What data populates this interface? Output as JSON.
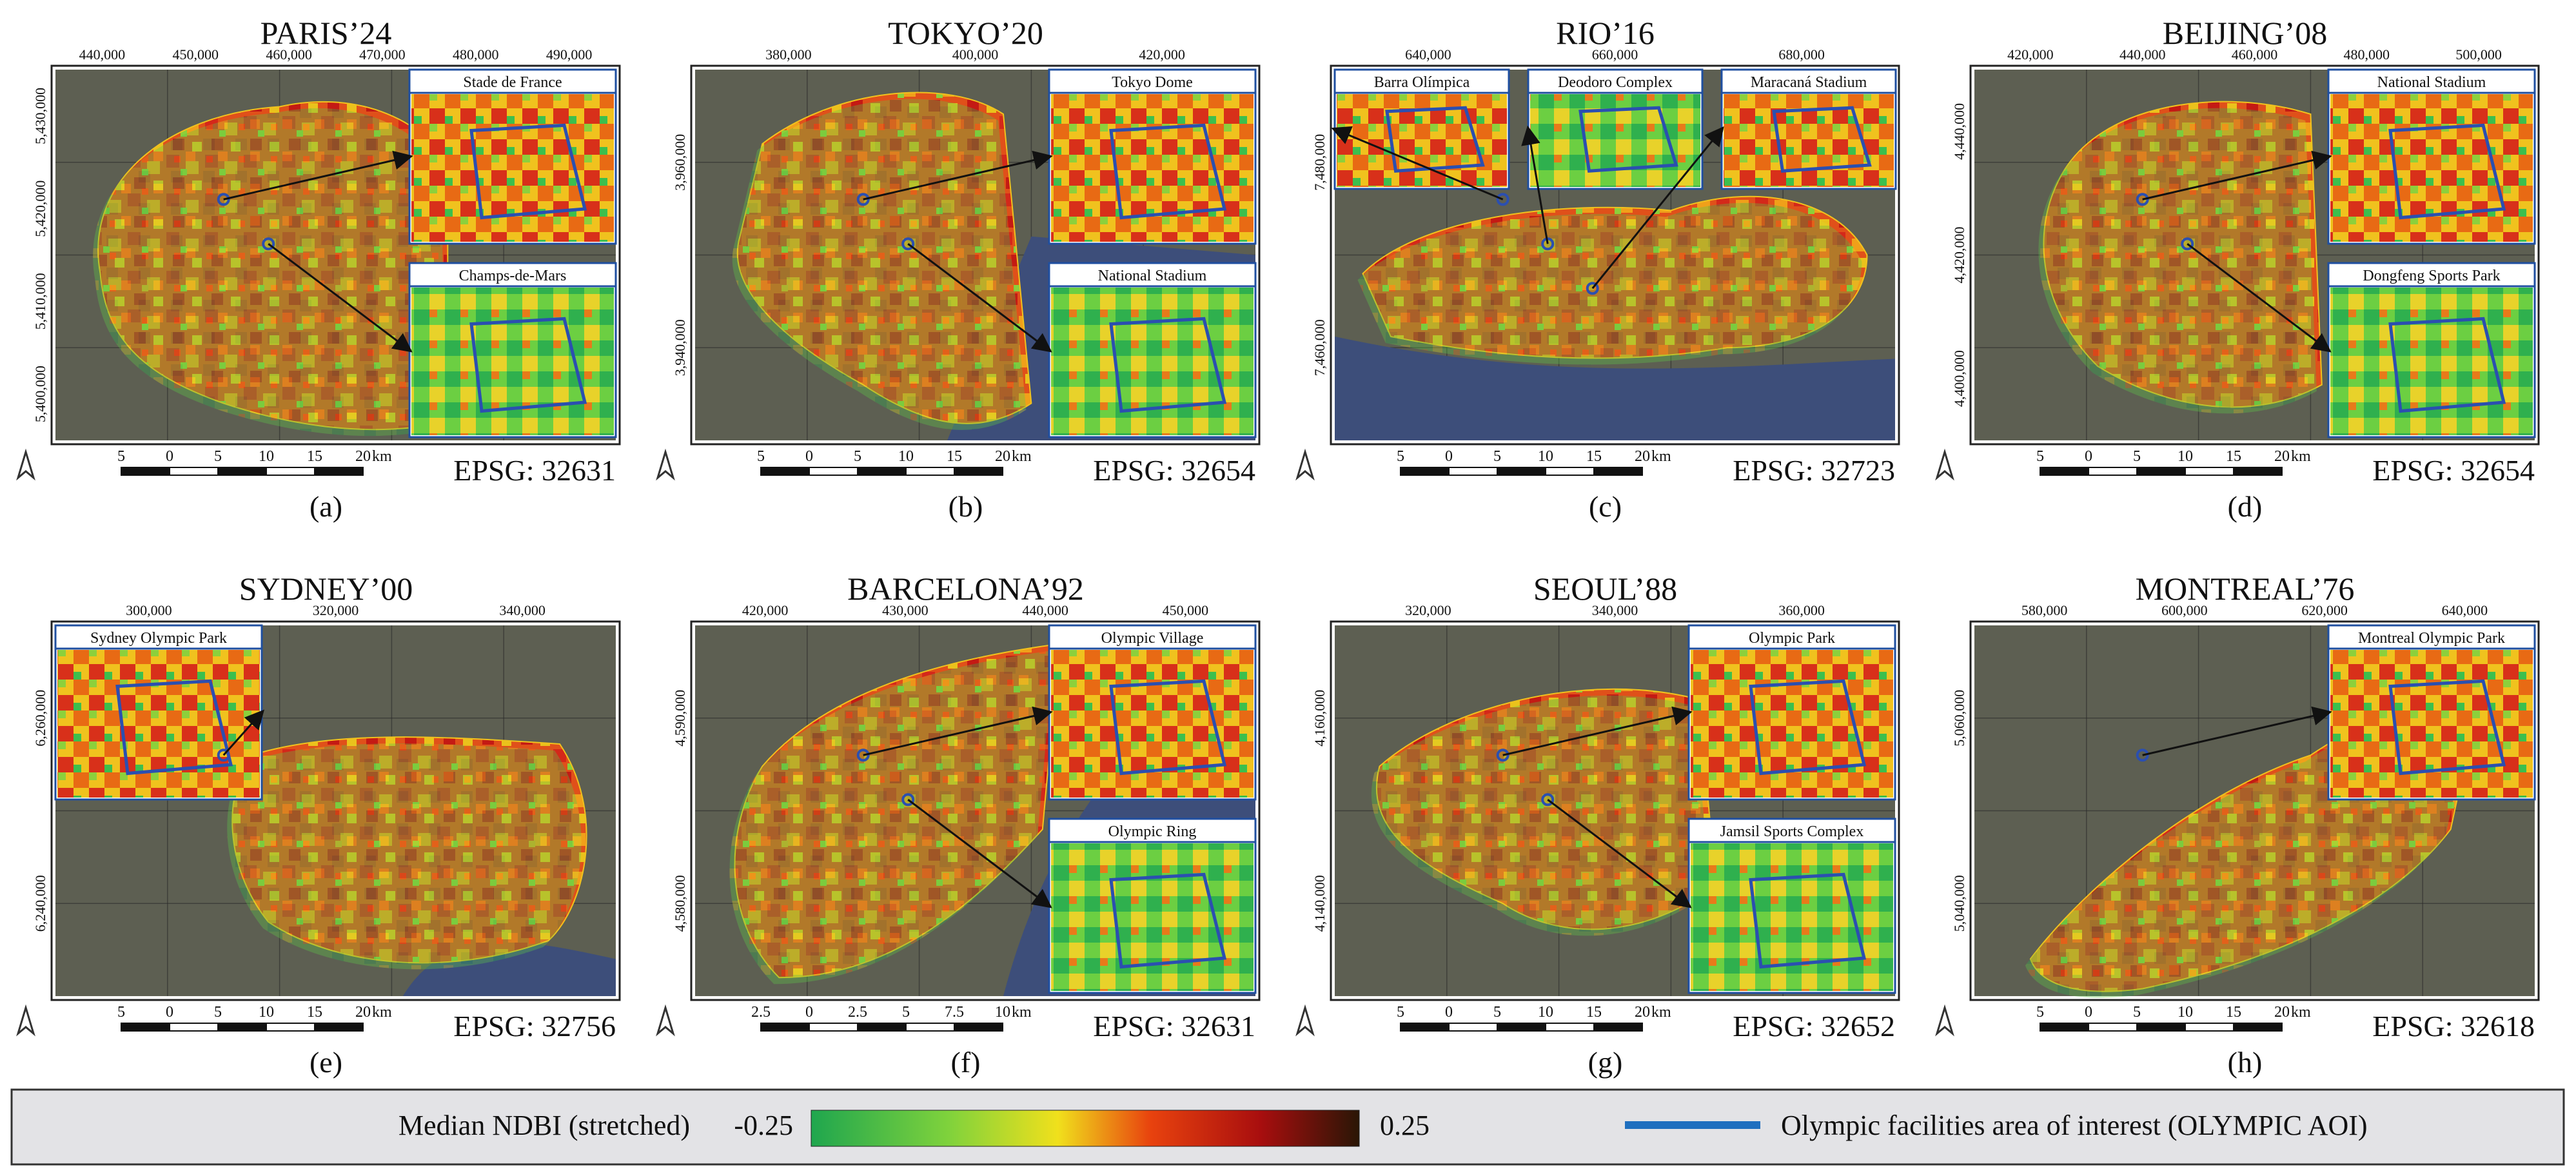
{
  "figure": {
    "panels": [
      {
        "title": "PARIS’24",
        "caption": "(a)",
        "epsg": "EPSG: 32631",
        "x_ticks": [
          "440,000",
          "450,000",
          "460,000",
          "470,000",
          "480,000",
          "490,000"
        ],
        "y_ticks": [
          "5,430,000",
          "5,420,000",
          "5,410,000",
          "5,400,000"
        ],
        "scale": {
          "labels": [
            "5",
            "0",
            "5",
            "10",
            "15",
            "20"
          ],
          "unit": "km"
        },
        "insets": [
          "Stade de France",
          "Champs-de-Mars"
        ]
      },
      {
        "title": "TOKYO’20",
        "caption": "(b)",
        "epsg": "EPSG: 32654",
        "x_ticks": [
          "380,000",
          "400,000",
          "420,000"
        ],
        "y_ticks": [
          "3,960,000",
          "3,940,000"
        ],
        "scale": {
          "labels": [
            "5",
            "0",
            "5",
            "10",
            "15",
            "20"
          ],
          "unit": "km"
        },
        "insets": [
          "Tokyo Dome",
          "National Stadium"
        ]
      },
      {
        "title": "RIO’16",
        "caption": "(c)",
        "epsg": "EPSG: 32723",
        "x_ticks": [
          "640,000",
          "660,000",
          "680,000"
        ],
        "y_ticks": [
          "7,480,000",
          "7,460,000"
        ],
        "scale": {
          "labels": [
            "5",
            "0",
            "5",
            "10",
            "15",
            "20"
          ],
          "unit": "km"
        },
        "insets": [
          "Barra Olímpica",
          "Deodoro Complex",
          "Maracaná Stadium"
        ]
      },
      {
        "title": "BEIJING’08",
        "caption": "(d)",
        "epsg": "EPSG: 32654",
        "x_ticks": [
          "420,000",
          "440,000",
          "460,000",
          "480,000",
          "500,000"
        ],
        "y_ticks": [
          "4,440,000",
          "4,420,000",
          "4,400,000"
        ],
        "scale": {
          "labels": [
            "5",
            "0",
            "5",
            "10",
            "15",
            "20"
          ],
          "unit": "km"
        },
        "insets": [
          "National Stadium",
          "Dongfeng Sports Park"
        ]
      },
      {
        "title": "SYDNEY’00",
        "caption": "(e)",
        "epsg": "EPSG: 32756",
        "x_ticks": [
          "300,000",
          "320,000",
          "340,000"
        ],
        "y_ticks": [
          "6,260,000",
          "6,240,000"
        ],
        "scale": {
          "labels": [
            "5",
            "0",
            "5",
            "10",
            "15",
            "20"
          ],
          "unit": "km"
        },
        "insets": [
          "Sydney Olympic Park"
        ]
      },
      {
        "title": "BARCELONA’92",
        "caption": "(f)",
        "epsg": "EPSG: 32631",
        "x_ticks": [
          "420,000",
          "430,000",
          "440,000",
          "450,000"
        ],
        "y_ticks": [
          "4,590,000",
          "4,580,000"
        ],
        "scale": {
          "labels": [
            "2.5",
            "0",
            "2.5",
            "5",
            "7.5",
            "10"
          ],
          "unit": "km"
        },
        "insets": [
          "Olympic Village",
          "Olympic Ring"
        ]
      },
      {
        "title": "SEOUL’88",
        "caption": "(g)",
        "epsg": "EPSG: 32652",
        "x_ticks": [
          "320,000",
          "340,000",
          "360,000"
        ],
        "y_ticks": [
          "4,160,000",
          "4,140,000"
        ],
        "scale": {
          "labels": [
            "5",
            "0",
            "5",
            "10",
            "15",
            "20"
          ],
          "unit": "km"
        },
        "insets": [
          "Olympic Park",
          "Jamsil Sports Complex"
        ]
      },
      {
        "title": "MONTREAL’76",
        "caption": "(h)",
        "epsg": "EPSG: 32618",
        "x_ticks": [
          "580,000",
          "600,000",
          "620,000",
          "640,000"
        ],
        "y_ticks": [
          "5,060,000",
          "5,040,000"
        ],
        "scale": {
          "labels": [
            "5",
            "0",
            "5",
            "10",
            "15",
            "20"
          ],
          "unit": "km"
        },
        "insets": [
          "Montreal Olympic Park"
        ]
      }
    ],
    "legend": {
      "label": "Median NDBI (stretched)",
      "min": "-0.25",
      "max": "0.25",
      "aoi_label": "Olympic facilities area of interest (OLYMPIC AOI)",
      "aoi_color": "#1f6fbf"
    },
    "colors": {
      "high": "#a80e0e",
      "mid_high": "#e8420e",
      "mid": "#f0c20e",
      "mid_low": "#7fd23c",
      "low": "#22b04a",
      "darkest": "#2a1606"
    }
  }
}
